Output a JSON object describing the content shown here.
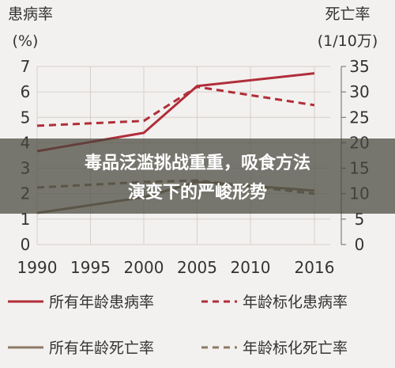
{
  "chart_data": {
    "type": "line",
    "ylabel": "患病率",
    "ylabel_unit": "(%)",
    "y2label": "死亡率",
    "y2label_unit": "(1/10万)",
    "banner": [
      "毒品泛滥挑战重重，吸食方法",
      "演变下的严峻形势"
    ],
    "x": [
      1990,
      2000,
      2005,
      2016
    ],
    "xlim": [
      1990,
      2016
    ],
    "xticks": [
      1990,
      1995,
      2000,
      2005,
      2010,
      2016
    ],
    "ylim": [
      0,
      7
    ],
    "yticks": [
      0,
      1,
      2,
      3,
      4,
      5,
      6,
      7
    ],
    "y2lim": [
      0,
      35
    ],
    "y2ticks": [
      0,
      5,
      10,
      15,
      20,
      25,
      30,
      35
    ],
    "grid": true,
    "series": [
      {
        "name": "所有年龄患病率",
        "color": "#b02e3a",
        "dash": false,
        "values": [
          3.67,
          4.39,
          6.23,
          6.73
        ]
      },
      {
        "name": "年龄标化患病率",
        "color": "#b02e3a",
        "dash": true,
        "values": [
          4.67,
          4.86,
          6.2,
          5.48
        ]
      },
      {
        "name": "所有年龄死亡率",
        "color": "#8c7a66",
        "dash": false,
        "axis": "y2",
        "values": [
          6.2,
          9.3,
          12.3,
          10.6
        ]
      },
      {
        "name": "年龄标化死亡率",
        "color": "#8c7a66",
        "dash": true,
        "axis": "y2",
        "values": [
          11.2,
          12.3,
          12.6,
          10.0
        ]
      }
    ]
  }
}
